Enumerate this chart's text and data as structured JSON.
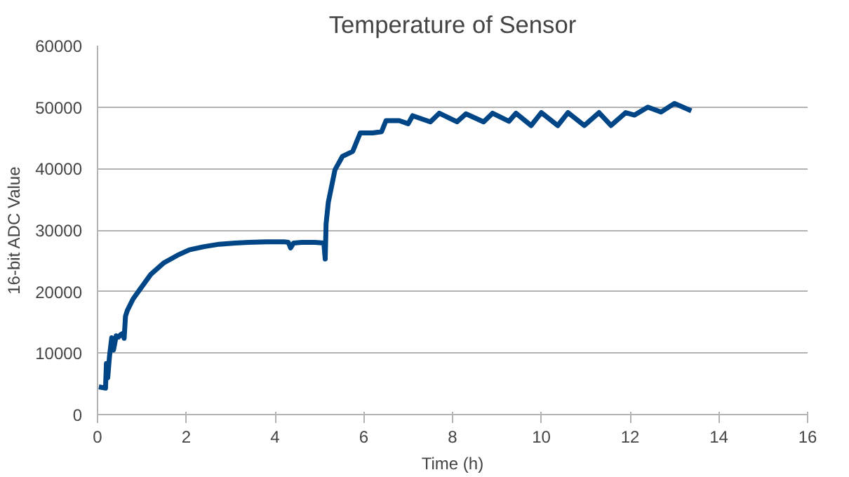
{
  "chart_data": {
    "type": "line",
    "title": "Temperature of Sensor",
    "xlabel": "Time (h)",
    "ylabel": "16-bit ADC Value",
    "xlim": [
      0,
      16
    ],
    "ylim": [
      0,
      60000
    ],
    "xticks": [
      0,
      2,
      4,
      6,
      8,
      10,
      12,
      14,
      16
    ],
    "yticks": [
      0,
      10000,
      20000,
      30000,
      40000,
      50000,
      60000
    ],
    "grid": "y",
    "series": [
      {
        "color": "#004586",
        "x": [
          0.03,
          0.18,
          0.2,
          0.23,
          0.27,
          0.32,
          0.36,
          0.42,
          0.47,
          0.52,
          0.57,
          0.6,
          0.63,
          0.67,
          0.8,
          0.94,
          1.2,
          1.5,
          1.8,
          2.07,
          2.4,
          2.74,
          3.1,
          3.4,
          3.8,
          4.2,
          4.3,
          4.35,
          4.42,
          4.6,
          4.9,
          5.1,
          5.13,
          5.15,
          5.2,
          5.35,
          5.52,
          5.75,
          5.92,
          6.2,
          6.4,
          6.5,
          6.8,
          7.0,
          7.1,
          7.5,
          7.7,
          8.1,
          8.3,
          8.7,
          8.9,
          9.27,
          9.43,
          9.77,
          10.0,
          10.37,
          10.6,
          10.97,
          11.3,
          11.57,
          11.9,
          12.1,
          12.4,
          12.7,
          13.0,
          13.38
        ],
        "values": [
          4500,
          4300,
          8300,
          6000,
          9500,
          12500,
          10500,
          12800,
          12600,
          13000,
          13200,
          12400,
          16000,
          16900,
          18800,
          20200,
          22800,
          24700,
          25900,
          26800,
          27300,
          27700,
          27900,
          28000,
          28100,
          28100,
          28000,
          27100,
          27900,
          28000,
          28000,
          27900,
          25300,
          31000,
          34500,
          39800,
          42000,
          42800,
          45800,
          45800,
          46000,
          47800,
          47800,
          47300,
          48600,
          47600,
          49000,
          47600,
          48900,
          47600,
          49000,
          47700,
          49000,
          47000,
          49100,
          47000,
          49100,
          47000,
          49100,
          47000,
          49100,
          48700,
          50000,
          49200,
          50600,
          49400
        ]
      }
    ]
  }
}
